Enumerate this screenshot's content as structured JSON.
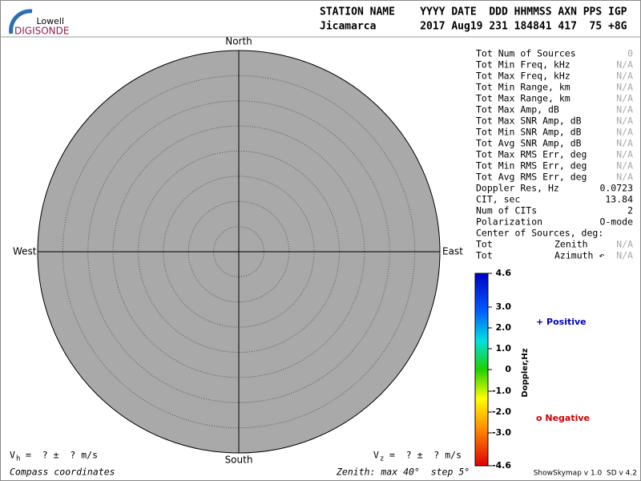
{
  "logo": {
    "line1": "Lowell",
    "line2": "DIGISONDE"
  },
  "header": {
    "row1": "STATION NAME    YYYY DATE  DDD HHMMSS AXN PPS IGP",
    "row2": "Jicamarca       2017 Aug19 231 184841 417  75 +8G"
  },
  "compass": {
    "north": "North",
    "south": "South",
    "west": "West",
    "east": "East"
  },
  "stats": [
    [
      "Tot Num of Sources",
      "0"
    ],
    [
      "Tot Min Freq, kHz",
      "N/A"
    ],
    [
      "Tot Max Freq, kHz",
      "N/A"
    ],
    [
      "Tot Min Range, km",
      "N/A"
    ],
    [
      "Tot Max Range, km",
      "N/A"
    ],
    [
      "Tot Max Amp, dB",
      "N/A"
    ],
    [
      "Tot Max SNR Amp, dB",
      "N/A"
    ],
    [
      "Tot Min SNR Amp, dB",
      "N/A"
    ],
    [
      "Tot Avg SNR Amp, dB",
      "N/A"
    ],
    [
      "Tot Max RMS Err, deg",
      "N/A"
    ],
    [
      "Tot Min RMS Err, deg",
      "N/A"
    ],
    [
      "Tot Avg RMS Err, deg",
      "N/A"
    ],
    [
      "Doppler Res, Hz",
      "0.0723"
    ],
    [
      "CIT, sec",
      "13.84"
    ],
    [
      "Num of CITs",
      "2"
    ],
    [
      "Polarization",
      "O-mode"
    ]
  ],
  "center": {
    "title": "Center of Sources, deg:",
    "rows": [
      [
        "Tot",
        "Zenith",
        "N/A"
      ],
      [
        "Tot",
        "Azimuth ↶",
        "N/A"
      ]
    ]
  },
  "colorbar": {
    "title": "Doppler,Hz",
    "labels": [
      "4.6",
      "3.0",
      "2.0",
      "1.0",
      "0",
      "-1.0",
      "-2.0",
      "-3.0",
      "-4.6"
    ]
  },
  "legend": {
    "positive": "+ Positive",
    "negative": "o Negative"
  },
  "footer": {
    "vh": {
      "symbol": "V",
      "sub": "h",
      "text": "=  ? ±  ? m/s"
    },
    "vz": {
      "symbol": "V",
      "sub": "z",
      "text": "=  ? ±  ? m/s"
    },
    "coords": "Compass coordinates",
    "zenith": "Zenith: max 40°  step 5°",
    "version": "ShowSkymap v 1.0  SD v 4.2"
  }
}
